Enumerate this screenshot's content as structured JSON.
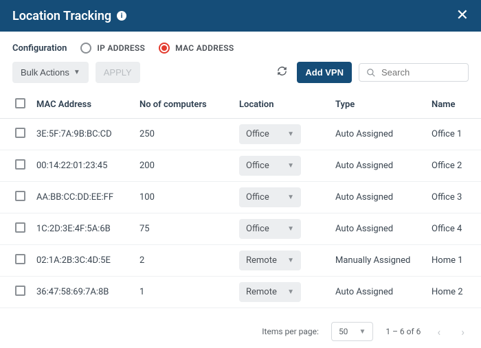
{
  "header": {
    "title": "Location Tracking"
  },
  "config": {
    "label": "Configuration",
    "options": [
      {
        "label": "IP ADDRESS",
        "selected": false
      },
      {
        "label": "MAC ADDRESS",
        "selected": true
      }
    ]
  },
  "toolbar": {
    "bulk_label": "Bulk Actions",
    "apply_label": "APPLY",
    "add_vpn_label": "Add VPN",
    "search_placeholder": "Search"
  },
  "columns": {
    "mac": "MAC Address",
    "count": "No of computers",
    "location": "Location",
    "type": "Type",
    "name": "Name"
  },
  "rows": [
    {
      "mac": "3E:5F:7A:9B:BC:CD",
      "count": "250",
      "location": "Office",
      "type": "Auto Assigned",
      "name": "Office 1"
    },
    {
      "mac": "00:14:22:01:23:45",
      "count": "200",
      "location": "Office",
      "type": "Auto Assigned",
      "name": "Office 2"
    },
    {
      "mac": "AA:BB:CC:DD:EE:FF",
      "count": "100",
      "location": "Office",
      "type": "Auto Assigned",
      "name": "Office 3"
    },
    {
      "mac": "1C:2D:3E:4F:5A:6B",
      "count": "75",
      "location": "Office",
      "type": "Auto Assigned",
      "name": "Office 4"
    },
    {
      "mac": "02:1A:2B:3C:4D:5E",
      "count": "2",
      "location": "Remote",
      "type": "Manually Assigned",
      "name": "Home 1"
    },
    {
      "mac": "36:47:58:69:7A:8B",
      "count": "1",
      "location": "Remote",
      "type": "Auto Assigned",
      "name": "Home 2"
    }
  ],
  "footer": {
    "items_per_page_label": "Items per page:",
    "page_size": "50",
    "range": "1 – 6 of 6"
  },
  "colors": {
    "header_bg": "#154d78",
    "accent_radio": "#e33b2e",
    "btn_light_bg": "#eceef0",
    "border": "#e3e6e9"
  }
}
